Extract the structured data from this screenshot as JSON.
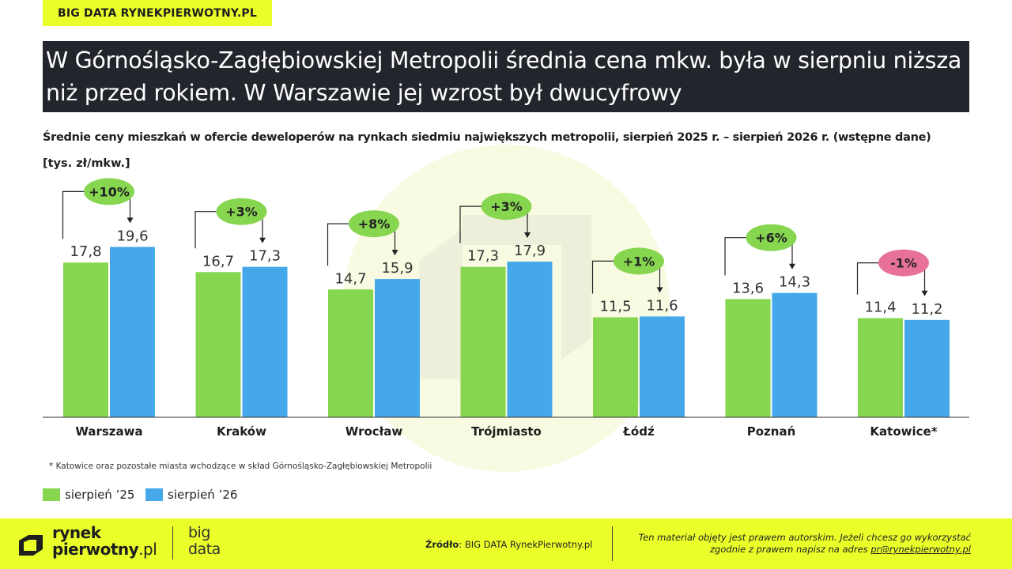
{
  "brand_tag": "BIG DATA RYNEKPIERWOTNY.PL",
  "title": "W Górnośląsko-Zagłębiowskiej Metropolii średnia cena mkw. była w sierpniu niższa niż przed rokiem. W Warszawie jej wzrost był dwucyfrowy",
  "subtitle": "Średnie ceny mieszkań w ofercie deweloperów na rynkach siedmiu największych metropolii, sierpień 2025 r. – sierpień 2026 r.  (wstępne dane)",
  "unit_label": "[tys. zł/mkw.]",
  "footnote": "* Katowice oraz pozostałe miasta wchodzące w skład Górnośląsko-Zagłębiowskiej Metropolii",
  "colors": {
    "series_2025": "#86d650",
    "series_2026": "#45a8ea",
    "change_positive": "#86d650",
    "change_negative": "#e8719a",
    "accent_yellow": "#eaff2a",
    "title_bg": "#22252b"
  },
  "chart_data": {
    "type": "bar",
    "categories": [
      "Warszawa",
      "Kraków",
      "Wrocław",
      "Trójmiasto",
      "Łódź",
      "Poznań",
      "Katowice*"
    ],
    "series": [
      {
        "name": "sierpień '25",
        "values": [
          17.8,
          16.7,
          14.7,
          17.3,
          11.5,
          13.6,
          11.4
        ],
        "labels": [
          "17,8",
          "16,7",
          "14,7",
          "17,3",
          "11,5",
          "13,6",
          "11,4"
        ]
      },
      {
        "name": "sierpień '26",
        "values": [
          19.6,
          17.3,
          15.9,
          17.9,
          11.6,
          14.3,
          11.2
        ],
        "labels": [
          "19,6",
          "17,3",
          "15,9",
          "17,9",
          "11,6",
          "14,3",
          "11,2"
        ]
      }
    ],
    "changes": [
      "+10%",
      "+3%",
      "+8%",
      "+3%",
      "+1%",
      "+6%",
      "-1%"
    ],
    "ylim": [
      0,
      20
    ],
    "ylabel": "[tys. zł/mkw.]",
    "grid": false,
    "legend_position": "bottom-left"
  },
  "legend": [
    {
      "label": "sierpień ’25"
    },
    {
      "label": "sierpień ’26"
    }
  ],
  "footer": {
    "logo_line1": "rynek",
    "logo_line2": "pierwotny",
    "logo_suffix": ".pl",
    "logo_bigdata_line1": "big",
    "logo_bigdata_line2": "data",
    "source_label": "Źródło",
    "source_text": ": BIG DATA RynekPierwotny.pl",
    "copyright_line1": "Ten materiał objęty jest prawem autorskim. Jeżeli chcesz go wykorzystać",
    "copyright_line2": "zgodnie z prawem napisz na adres ",
    "copyright_email": "pr@rynekpierwotny.pl"
  }
}
